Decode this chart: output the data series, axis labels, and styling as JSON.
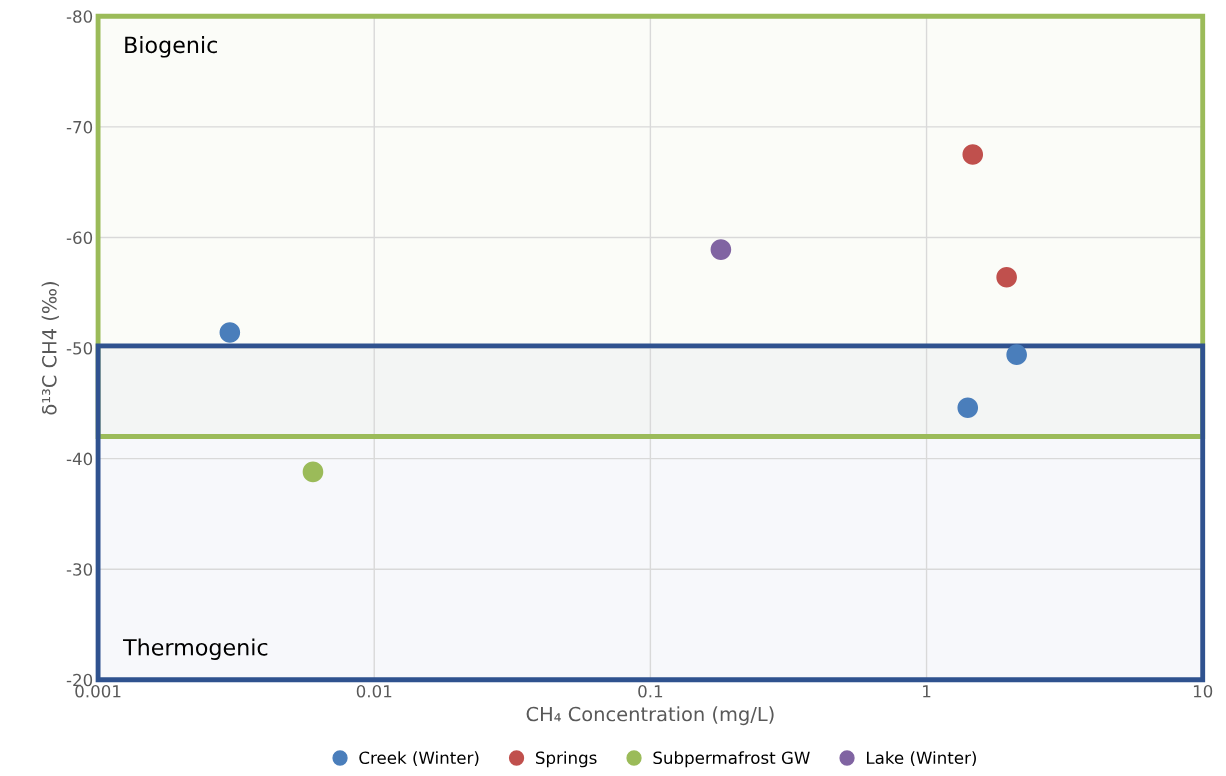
{
  "chart_data": {
    "type": "scatter",
    "xlabel": "CH₄ Concentration (mg/L)",
    "ylabel": "δ¹³C CH4 (‰)",
    "log": "x",
    "xlim": [
      0.001,
      10
    ],
    "xticks": [
      0.001,
      0.01,
      0.1,
      1,
      10
    ],
    "ylim": [
      -20,
      -80
    ],
    "yticks": [
      -80,
      -70,
      -60,
      -50,
      -40,
      -30,
      -20
    ],
    "grid": true,
    "legend": "bottom",
    "marker": "circle",
    "series": [
      {
        "name": "Creek (Winter)",
        "color": "#4a7ebb",
        "x": [
          0.003,
          1.41,
          2.12
        ],
        "values": [
          -51.4,
          -44.6,
          -49.4
        ]
      },
      {
        "name": "Springs",
        "color": "#c0504d",
        "x": [
          1.47,
          1.95
        ],
        "values": [
          -67.5,
          -56.4
        ]
      },
      {
        "name": "Subpermafrost GW",
        "color": "#9bbb59",
        "x": [
          0.006
        ],
        "values": [
          -38.8
        ]
      },
      {
        "name": "Lake (Winter)",
        "color": "#8064a2",
        "x": [
          0.18
        ],
        "values": [
          -58.9
        ]
      }
    ],
    "bands": [
      {
        "axis": "y",
        "from": -42,
        "to": -80,
        "label": "Biogenic",
        "color": "#9bbb59"
      },
      {
        "axis": "y",
        "from": -50.2,
        "to": -20,
        "label": "Thermogenic",
        "color": "#2f528f"
      }
    ]
  }
}
